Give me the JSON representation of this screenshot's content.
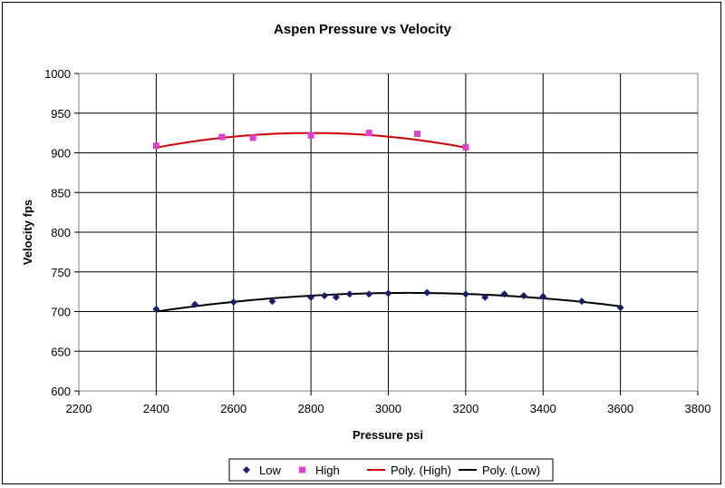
{
  "chart_data": {
    "type": "scatter",
    "title": "Aspen Pressure vs Velocity",
    "xlabel": "Pressure psi",
    "ylabel": "Velocity fps",
    "xlim": [
      2200,
      3800
    ],
    "ylim": [
      600,
      1000
    ],
    "xticks": [
      2200,
      2400,
      2600,
      2800,
      3000,
      3200,
      3400,
      3600,
      3800
    ],
    "yticks": [
      600,
      650,
      700,
      750,
      800,
      850,
      900,
      950,
      1000
    ],
    "grid": true,
    "legend_position": "bottom",
    "series": [
      {
        "name": "Low",
        "marker": "diamond",
        "color": "#1a1a6e",
        "points": [
          [
            2400,
            703
          ],
          [
            2500,
            709
          ],
          [
            2600,
            712
          ],
          [
            2700,
            713
          ],
          [
            2800,
            718
          ],
          [
            2835,
            720
          ],
          [
            2865,
            718
          ],
          [
            2900,
            722
          ],
          [
            2950,
            722
          ],
          [
            3000,
            723
          ],
          [
            3100,
            724
          ],
          [
            3200,
            722
          ],
          [
            3250,
            718
          ],
          [
            3300,
            722
          ],
          [
            3350,
            720
          ],
          [
            3400,
            719
          ],
          [
            3500,
            713
          ],
          [
            3600,
            705
          ]
        ]
      },
      {
        "name": "High",
        "marker": "square",
        "color": "#e040c8",
        "points": [
          [
            2400,
            909
          ],
          [
            2570,
            920
          ],
          [
            2650,
            919
          ],
          [
            2800,
            922
          ],
          [
            2950,
            925
          ],
          [
            3075,
            924
          ],
          [
            3200,
            907
          ]
        ]
      }
    ],
    "trendlines": [
      {
        "name": "Poly. (High)",
        "color": "#cc0000",
        "coefficients": [
          -0.0001153,
          0.6525,
          0
        ],
        "x_range": [
          2400,
          3200
        ],
        "anchor": {
          "x": 2800,
          "y": 925
        }
      },
      {
        "name": "Poly. (Low)",
        "color": "#000000",
        "coefficients": [
          -5.56e-05,
          0,
          0
        ],
        "x_range": [
          2400,
          3600
        ],
        "anchor": {
          "x": 3050,
          "y": 723.5
        }
      }
    ]
  },
  "legend": {
    "items": [
      {
        "label": "Low",
        "kind": "diamond",
        "color": "#1a1a6e"
      },
      {
        "label": "High",
        "kind": "square",
        "color": "#e040c8"
      },
      {
        "label": "Poly. (High)",
        "kind": "line",
        "color": "#cc0000"
      },
      {
        "label": "Poly. (Low)",
        "kind": "line",
        "color": "#000000"
      }
    ]
  }
}
